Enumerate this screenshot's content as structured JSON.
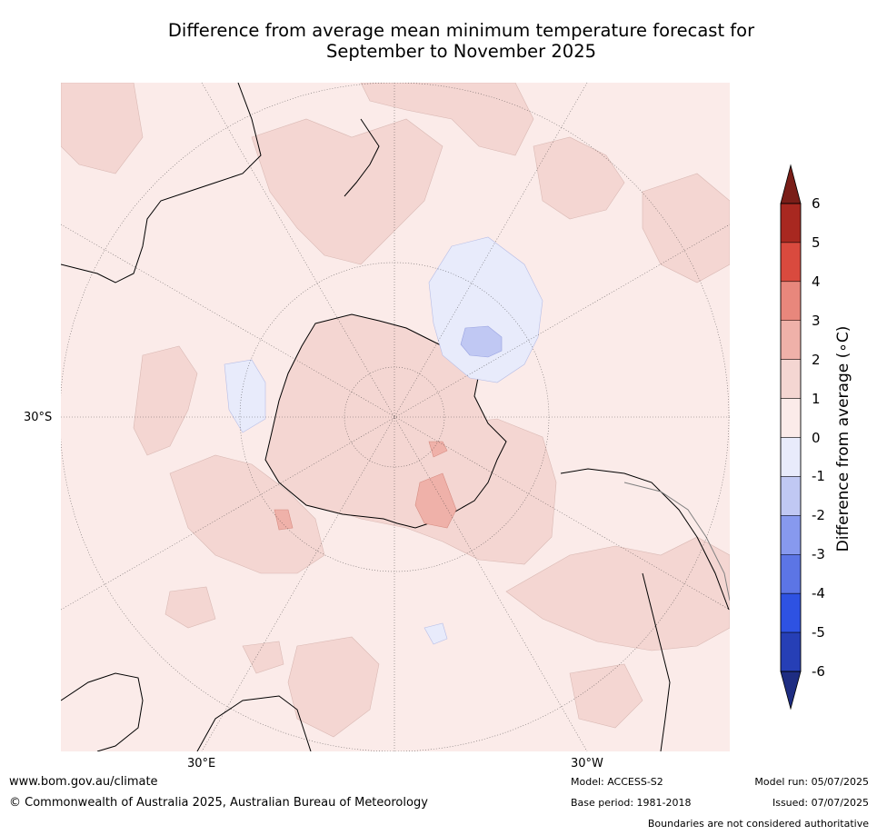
{
  "title": {
    "line1": "Difference from average mean minimum temperature forecast for",
    "line2": "September to November 2025"
  },
  "map": {
    "projection": "south-polar-stereographic",
    "latitude_label": "30°S",
    "longitude_labels": [
      "30°E",
      "30°W"
    ],
    "background_color": "#fbebe9",
    "anomaly_regions": [
      {
        "location": "Antarctic continent",
        "category": "0 to 1"
      },
      {
        "location": "South Atlantic / Drake Passage",
        "category": "1 to 2"
      },
      {
        "location": "Near South Georgia",
        "category": "2 to 3"
      },
      {
        "location": "South Pacific south-east of New Zealand",
        "category": "-1 to 0"
      },
      {
        "location": "South Pacific core",
        "category": "-2 to -1"
      },
      {
        "location": "Southern Indian Ocean",
        "category": "0 to 1"
      }
    ]
  },
  "colorbar": {
    "label": "Difference from average (∘C)",
    "ticks": [
      "6",
      "5",
      "4",
      "3",
      "2",
      "1",
      "0",
      "-1",
      "-2",
      "-3",
      "-4",
      "-5",
      "-6"
    ],
    "colors": [
      "#a82820",
      "#d94a3e",
      "#e8877c",
      "#efb1a9",
      "#f4d6d2",
      "#fbebe9",
      "#e8ebfb",
      "#c0c8f3",
      "#8799ee",
      "#5c75e5",
      "#2e52e2",
      "#263fb6"
    ],
    "extend_high_color": "#7a1e18",
    "extend_low_color": "#1e2d82"
  },
  "footer": {
    "website": "www.bom.gov.au/climate",
    "copyright": "© Commonwealth of Australia 2025, Australian Bureau of Meteorology",
    "model": "Model: ACCESS-S2",
    "base_period": "Base period: 1981-2018",
    "model_run": "Model run: 05/07/2025",
    "issued": "Issued: 07/07/2025",
    "disclaimer": "Boundaries are not considered authoritative"
  }
}
